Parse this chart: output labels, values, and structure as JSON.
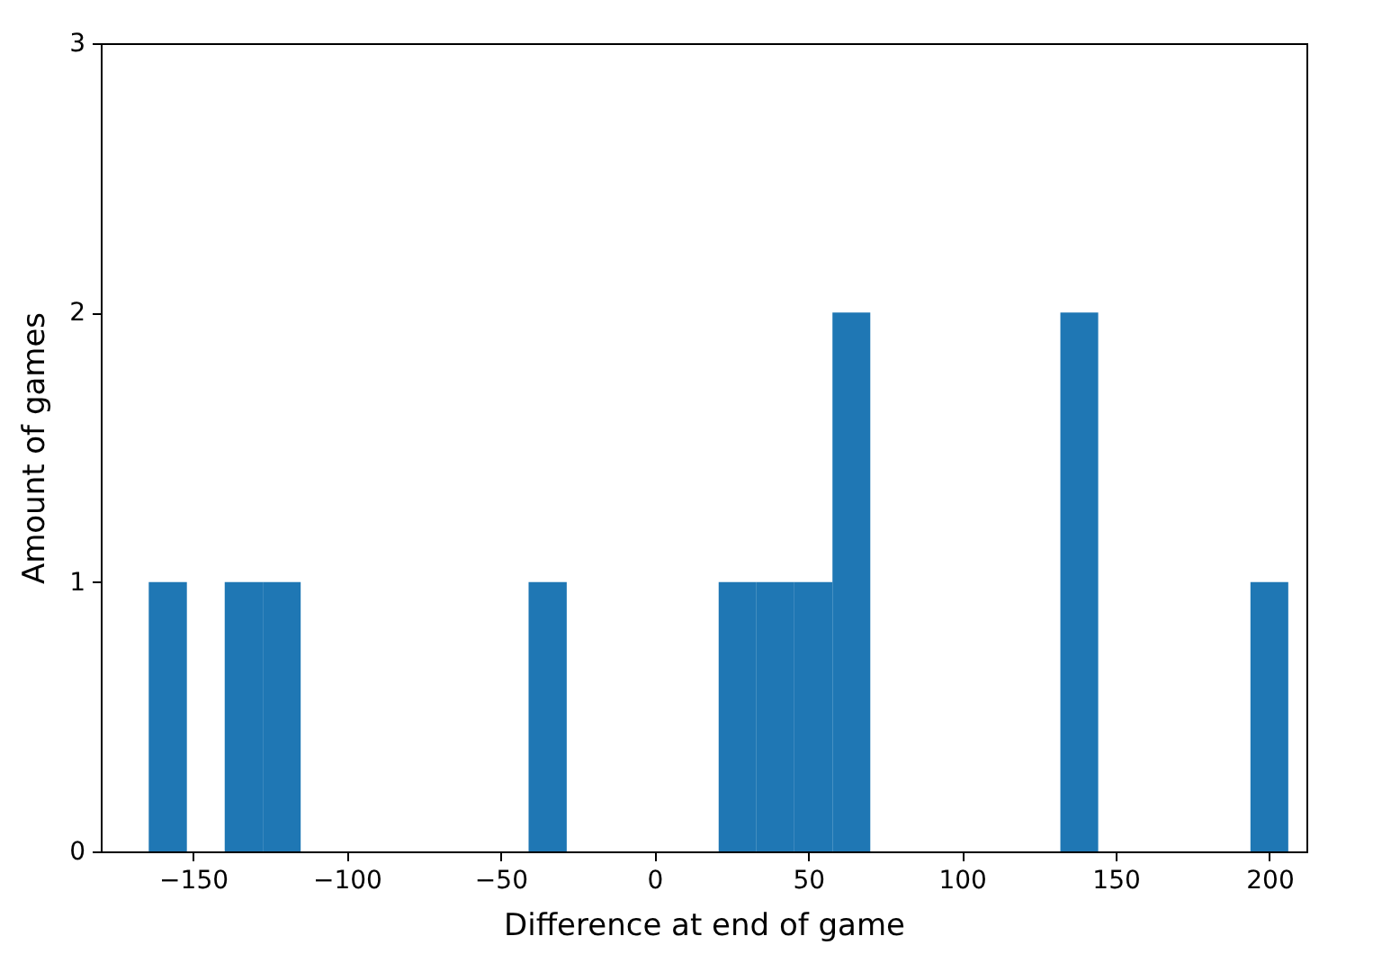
{
  "chart_data": {
    "type": "histogram",
    "xlabel": "Difference at end of game",
    "ylabel": "Amount of games",
    "color": "#1f77b4",
    "bins": [
      -164.4,
      -152.0,
      -139.7,
      -127.3,
      -115.0,
      -102.6,
      -90.3,
      -78.0,
      -65.6,
      -53.2,
      -40.9,
      -28.5,
      -16.2,
      -3.8,
      8.5,
      20.9,
      33.2,
      45.5,
      57.9,
      70.2,
      82.6,
      95.0,
      107.3,
      119.6,
      132.0,
      144.3,
      156.7,
      169.0,
      181.4,
      193.8,
      206.1
    ],
    "values": [
      1,
      0,
      1,
      1,
      0,
      0,
      0,
      0,
      0,
      0,
      1,
      0,
      0,
      0,
      0,
      1,
      1,
      1,
      2,
      0,
      0,
      0,
      0,
      0,
      2,
      0,
      0,
      0,
      0,
      1
    ],
    "xlim": [
      -180,
      212
    ],
    "xticks": [
      {
        "value": -150,
        "label": "−150"
      },
      {
        "value": -100,
        "label": "−100"
      },
      {
        "value": -50,
        "label": "−50"
      },
      0,
      50,
      100,
      150,
      200
    ],
    "ylim": [
      0,
      3
    ],
    "yticks": [
      0,
      1,
      2,
      3
    ],
    "grid": false
  }
}
